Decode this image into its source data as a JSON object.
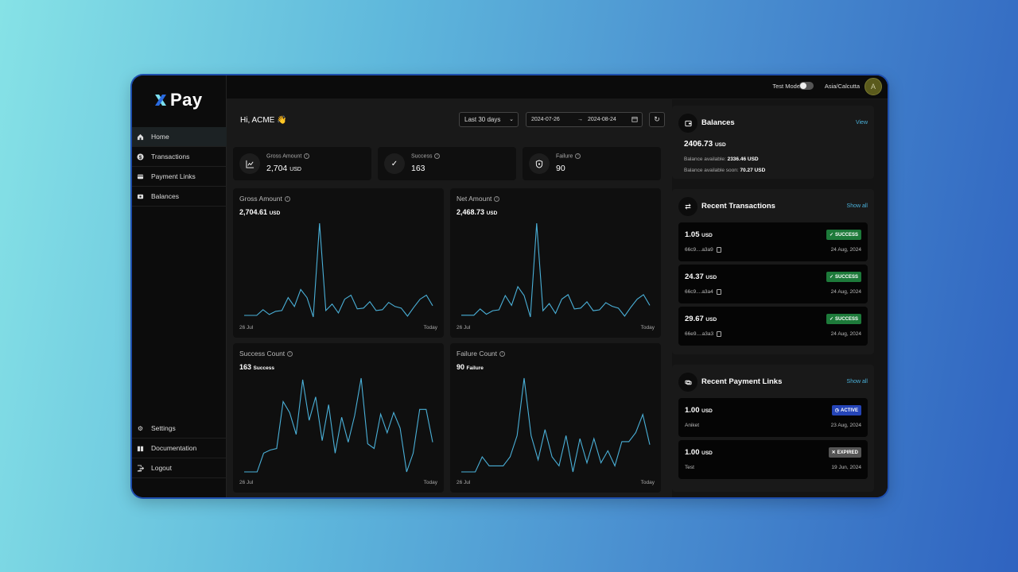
{
  "app": {
    "name": "Pay"
  },
  "sidebar": {
    "items": [
      {
        "label": "Home",
        "icon": "home-icon",
        "active": true
      },
      {
        "label": "Transactions",
        "icon": "dollar-icon"
      },
      {
        "label": "Payment Links",
        "icon": "link-icon"
      },
      {
        "label": "Balances",
        "icon": "wallet-icon"
      }
    ],
    "bottom_items": [
      {
        "label": "Settings",
        "icon": "gear-icon"
      },
      {
        "label": "Documentation",
        "icon": "book-icon"
      },
      {
        "label": "Logout",
        "icon": "logout-icon"
      }
    ]
  },
  "topbar": {
    "test_mode_label": "Test Mode",
    "test_mode_on": false,
    "timezone": "Asia/Calcutta",
    "avatar_initial": "A"
  },
  "main": {
    "greeting": "Hi, ACME 👋",
    "range_select": "Last 30 days",
    "date_from": "2024-07-26",
    "date_arrow": "→",
    "date_to": "2024-08-24",
    "stats": [
      {
        "label": "Gross Amount",
        "value": "2,704",
        "unit": "USD"
      },
      {
        "label": "Success",
        "value": "163",
        "unit": ""
      },
      {
        "label": "Failure",
        "value": "90",
        "unit": ""
      }
    ],
    "charts": [
      {
        "title": "Gross Amount",
        "value": "2,704.61",
        "unit": "USD",
        "start": "26 Jul",
        "end": "Today",
        "values": [
          2,
          2,
          2,
          9,
          3,
          7,
          8,
          24,
          13,
          34,
          24,
          0,
          116,
          8,
          16,
          5,
          22,
          27,
          10,
          11,
          19,
          8,
          9,
          18,
          13,
          11,
          1,
          12,
          22,
          27,
          14
        ]
      },
      {
        "title": "Net Amount",
        "value": "2,468.73",
        "unit": "USD",
        "start": "26 Jul",
        "end": "Today",
        "values": [
          2,
          2,
          2,
          9,
          3,
          7,
          8,
          24,
          13,
          34,
          24,
          0,
          105,
          7,
          15,
          4,
          20,
          25,
          9,
          10,
          17,
          7,
          8,
          16,
          12,
          10,
          1,
          11,
          20,
          25,
          13
        ]
      },
      {
        "title": "Success Count",
        "value": "163",
        "unit": "Success",
        "start": "26 Jul",
        "end": "Today",
        "values": [
          0,
          0,
          0,
          12,
          14,
          15,
          45,
          38,
          24,
          59,
          33,
          48,
          20,
          43,
          12,
          35,
          19,
          36,
          60,
          18,
          15,
          37,
          25,
          38,
          28,
          0,
          12,
          40,
          40,
          19
        ]
      },
      {
        "title": "Failure Count",
        "value": "90",
        "unit": "Failure",
        "start": "26 Jul",
        "end": "Today",
        "values": [
          0,
          0,
          0,
          5,
          2,
          2,
          2,
          5,
          12,
          31,
          12,
          4,
          14,
          5,
          2,
          12,
          0,
          11,
          3,
          11,
          3,
          7,
          2,
          10,
          10,
          13,
          19,
          9
        ]
      }
    ]
  },
  "balances": {
    "title": "Balances",
    "link": "View",
    "amount": "2406.73",
    "unit": "USD",
    "available_label": "Balance available:",
    "available_value": "2336.46 USD",
    "soon_label": "Balance available soon:",
    "soon_value": "70.27 USD"
  },
  "recent_transactions": {
    "title": "Recent Transactions",
    "link": "Show all",
    "items": [
      {
        "amount": "1.05",
        "unit": "USD",
        "id": "66c9....a3a9",
        "date": "24 Aug, 2024",
        "status": "SUCCESS"
      },
      {
        "amount": "24.37",
        "unit": "USD",
        "id": "66c9....a3a4",
        "date": "24 Aug, 2024",
        "status": "SUCCESS"
      },
      {
        "amount": "29.67",
        "unit": "USD",
        "id": "66e9....a3a3",
        "date": "24 Aug, 2024",
        "status": "SUCCESS"
      }
    ]
  },
  "recent_payment_links": {
    "title": "Recent Payment Links",
    "link": "Show all",
    "items": [
      {
        "amount": "1.00",
        "unit": "USD",
        "name": "Aniket",
        "date": "23 Aug, 2024",
        "status": "ACTIVE"
      },
      {
        "amount": "1.00",
        "unit": "USD",
        "name": "Test",
        "date": "19 Jun, 2024",
        "status": "EXPIRED"
      }
    ]
  },
  "colors": {
    "accent": "#4ab0d8",
    "success": "#1d7a3a",
    "active": "#2545b8",
    "expired": "#555555"
  }
}
